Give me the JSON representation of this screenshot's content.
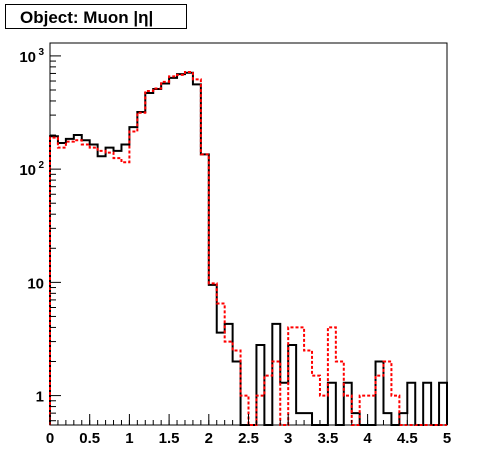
{
  "title": "Object: Muon |η|",
  "chart_data": {
    "type": "histogram",
    "title": "Object: Muon |η|",
    "xlabel": "",
    "ylabel": "",
    "xlim": [
      0,
      5
    ],
    "ylim": [
      0.55,
      1300
    ],
    "y_scale": "log",
    "bin_width": 0.1,
    "x_ticks": [
      "0",
      "0.5",
      "1",
      "1.5",
      "2",
      "2.5",
      "3",
      "3.5",
      "4",
      "4.5",
      "5"
    ],
    "y_tick_labels": [
      {
        "value": 1,
        "label": "1"
      },
      {
        "value": 10,
        "label": "10"
      },
      {
        "value": 100,
        "label": "10^2"
      },
      {
        "value": 1000,
        "label": "10^3"
      }
    ],
    "grid": false,
    "legend": "none",
    "series": [
      {
        "style": "solid",
        "color": "#000000",
        "values": [
          195,
          170,
          185,
          200,
          180,
          165,
          130,
          155,
          145,
          165,
          235,
          320,
          470,
          510,
          570,
          640,
          690,
          710,
          560,
          135,
          9.5,
          3.6,
          4.3,
          2.0,
          0,
          0,
          2.8,
          0,
          4.3,
          1.3,
          2.8,
          0.7,
          0.7,
          0,
          0,
          1.3,
          0,
          1.3,
          0.7,
          0,
          0,
          2.0,
          0.7,
          0,
          0.7,
          1.3,
          0,
          1.3,
          0,
          1.3
        ]
      },
      {
        "style": "dashed",
        "color": "#ff0000",
        "values": [
          190,
          155,
          175,
          180,
          165,
          155,
          145,
          140,
          125,
          115,
          215,
          315,
          490,
          515,
          590,
          660,
          680,
          720,
          620,
          135,
          9.8,
          6.5,
          3.0,
          2.5,
          1.0,
          0,
          1.0,
          1.5,
          2.0,
          0,
          4.0,
          4.0,
          2.5,
          1.5,
          1.0,
          4.0,
          2.0,
          1.0,
          0,
          1.0,
          1.0,
          1.5,
          2.0,
          1.0,
          0,
          0,
          0,
          0,
          0,
          0
        ]
      }
    ]
  }
}
